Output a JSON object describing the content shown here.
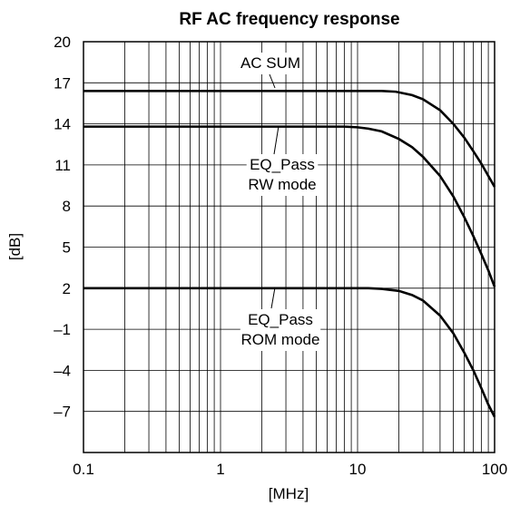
{
  "chart_data": {
    "type": "line",
    "title": "RF AC frequency response",
    "xlabel": "[MHz]",
    "ylabel": "[dB]",
    "xscale": "log",
    "xlim": [
      0.1,
      100
    ],
    "ylim": [
      -10,
      20
    ],
    "x_ticks": [
      0.1,
      1,
      10,
      100
    ],
    "x_tick_labels": [
      "0.1",
      "1",
      "10",
      "100"
    ],
    "y_ticks": [
      20,
      17,
      14,
      11,
      8,
      5,
      2,
      -1,
      -4,
      -7
    ],
    "y_tick_labels": [
      "20",
      "17",
      "14",
      "11",
      "8",
      "5",
      "2",
      "–1",
      "–4",
      "–7"
    ],
    "grid": true,
    "series": [
      {
        "name": "AC SUM",
        "x": [
          0.1,
          10,
          15,
          19,
          25,
          30,
          40,
          50,
          60,
          70,
          80,
          90,
          100
        ],
        "y": [
          16.4,
          16.4,
          16.4,
          16.35,
          16.1,
          15.8,
          15.0,
          14.0,
          13.0,
          12.0,
          11.1,
          10.2,
          9.4
        ]
      },
      {
        "name": "EQ_Pass RW mode",
        "x": [
          0.1,
          8,
          10,
          12,
          15,
          20,
          25,
          30,
          40,
          50,
          60,
          70,
          80,
          90,
          100
        ],
        "y": [
          13.8,
          13.8,
          13.75,
          13.65,
          13.45,
          12.9,
          12.3,
          11.6,
          10.2,
          8.7,
          7.2,
          5.8,
          4.5,
          3.3,
          2.1
        ]
      },
      {
        "name": "EQ_Pass ROM mode",
        "x": [
          0.1,
          12,
          15,
          20,
          25,
          30,
          40,
          50,
          60,
          70,
          80,
          90,
          100
        ],
        "y": [
          2.0,
          2.0,
          1.95,
          1.8,
          1.5,
          1.1,
          0.0,
          -1.3,
          -2.7,
          -4.0,
          -5.3,
          -6.5,
          -7.4
        ]
      }
    ],
    "annotations": [
      {
        "lines": [
          "AC SUM"
        ],
        "series": 0
      },
      {
        "lines": [
          "EQ_Pass",
          "RW mode"
        ],
        "series": 1
      },
      {
        "lines": [
          "EQ_Pass",
          "ROM mode"
        ],
        "series": 2
      }
    ]
  }
}
